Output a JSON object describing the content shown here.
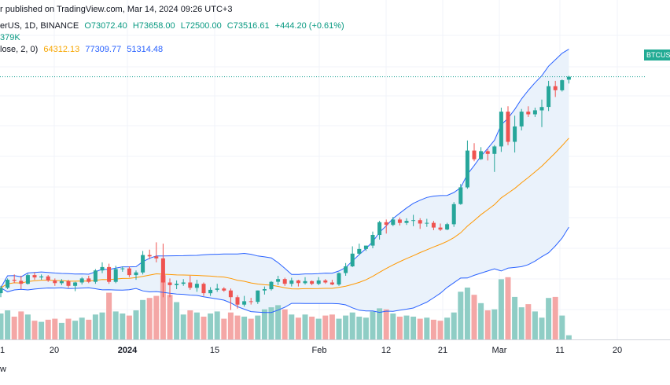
{
  "header": {
    "published": "r published on TradingView.com, Mar 14, 2024 09:26 UTC+3",
    "symbol": "erUS, 1D, BINANCE",
    "ohlc": {
      "open": "O73072.40",
      "high": "H73658.00",
      "low": "L72500.00",
      "close": "C73516.61",
      "change": "+444.20 (+0.61%)"
    },
    "volume": "379K",
    "indicator": {
      "name": "lose, 2, 0)",
      "basis": "64312.13",
      "upper": "77309.77",
      "lower": "51314.48"
    }
  },
  "price_tag": "BTCUS",
  "x_axis_labels": [
    {
      "text": "1",
      "bold": false
    },
    {
      "text": "20",
      "bold": false
    },
    {
      "text": "2024",
      "bold": true
    },
    {
      "text": "15",
      "bold": false
    },
    {
      "text": "Feb",
      "bold": false
    },
    {
      "text": "12",
      "bold": false
    },
    {
      "text": "21",
      "bold": false
    },
    {
      "text": "Mar",
      "bold": false
    },
    {
      "text": "11",
      "bold": false
    },
    {
      "text": "20",
      "bold": false
    }
  ],
  "corner_text": "w",
  "colors": {
    "up": "#26a69a",
    "down": "#ef5350",
    "vol_up": "#8fcdc5",
    "vol_down": "#f4a7a6",
    "band": "#2962ff",
    "band_fill": "#eaf2fb",
    "basis": "#ff9800"
  },
  "chart_data": {
    "type": "candlestick",
    "ohlc": [
      [
        41200,
        42300,
        40600,
        42000
      ],
      [
        42000,
        43400,
        41800,
        43200
      ],
      [
        43200,
        44000,
        42700,
        43050
      ],
      [
        43050,
        43800,
        41800,
        42600
      ],
      [
        42600,
        44100,
        42500,
        43900
      ],
      [
        43900,
        44300,
        43200,
        43550
      ],
      [
        43550,
        44000,
        43200,
        43700
      ],
      [
        43700,
        43900,
        42900,
        43100
      ],
      [
        43100,
        43400,
        42300,
        42700
      ],
      [
        42700,
        43300,
        42400,
        43000
      ],
      [
        43000,
        43200,
        42000,
        42300
      ],
      [
        42300,
        42900,
        41500,
        42800
      ],
      [
        42800,
        43600,
        42500,
        43400
      ],
      [
        43400,
        43800,
        42700,
        42900
      ],
      [
        42900,
        44800,
        42600,
        44600
      ],
      [
        44600,
        45800,
        44200,
        45100
      ],
      [
        45100,
        45600,
        42600,
        42900
      ],
      [
        42900,
        45300,
        42700,
        44800
      ],
      [
        44800,
        45200,
        44400,
        44900
      ],
      [
        44900,
        45200,
        43600,
        43900
      ],
      [
        43900,
        44600,
        43200,
        44300
      ],
      [
        44300,
        47500,
        44000,
        46900
      ],
      [
        46900,
        47700,
        46300,
        46700
      ],
      [
        46700,
        48800,
        45800,
        46400
      ],
      [
        46400,
        48600,
        40600,
        42800
      ],
      [
        42800,
        43400,
        40600,
        42400
      ],
      [
        42400,
        43100,
        41800,
        42600
      ],
      [
        42600,
        43300,
        42300,
        42800
      ],
      [
        42800,
        43800,
        41700,
        42000
      ],
      [
        42000,
        43200,
        41400,
        42600
      ],
      [
        42600,
        42800,
        40800,
        41200
      ],
      [
        41200,
        42100,
        40800,
        41700
      ],
      [
        41700,
        42600,
        41400,
        41900
      ],
      [
        41900,
        42100,
        41400,
        41600
      ],
      [
        41600,
        41900,
        38700,
        40600
      ],
      [
        40600,
        40900,
        38900,
        39500
      ],
      [
        39500,
        40800,
        39200,
        40000
      ],
      [
        40000,
        40500,
        39500,
        39900
      ],
      [
        39900,
        41600,
        39600,
        41600
      ],
      [
        41600,
        42200,
        41000,
        41800
      ],
      [
        41800,
        43000,
        41600,
        42900
      ],
      [
        42900,
        43800,
        42400,
        43300
      ],
      [
        43300,
        43500,
        42300,
        42600
      ],
      [
        42600,
        43500,
        42200,
        43100
      ],
      [
        43100,
        43200,
        42200,
        42700
      ],
      [
        42700,
        43600,
        42500,
        43000
      ],
      [
        43000,
        43100,
        42400,
        42600
      ],
      [
        42600,
        43600,
        42400,
        43100
      ],
      [
        43100,
        43300,
        42600,
        42800
      ],
      [
        42800,
        43200,
        42400,
        42500
      ],
      [
        42500,
        44300,
        42300,
        44200
      ],
      [
        44200,
        45700,
        43800,
        45200
      ],
      [
        45200,
        48200,
        45100,
        47100
      ],
      [
        47100,
        48600,
        46900,
        47800
      ],
      [
        47800,
        48300,
        47500,
        48300
      ],
      [
        48300,
        50400,
        47900,
        49900
      ],
      [
        49900,
        52000,
        49200,
        51800
      ],
      [
        51800,
        52200,
        50100,
        51400
      ],
      [
        51400,
        52600,
        51200,
        52200
      ],
      [
        52200,
        52500,
        51300,
        51700
      ],
      [
        51700,
        52400,
        51400,
        52000
      ],
      [
        52000,
        52900,
        51200,
        52100
      ],
      [
        52100,
        52400,
        50800,
        51600
      ],
      [
        51600,
        52300,
        51100,
        51700
      ],
      [
        51700,
        52000,
        50600,
        51000
      ],
      [
        51000,
        51600,
        50500,
        50700
      ],
      [
        50700,
        51700,
        50600,
        51500
      ],
      [
        51500,
        54800,
        51100,
        54500
      ],
      [
        54500,
        57500,
        54400,
        57000
      ],
      [
        57000,
        64000,
        56800,
        62500
      ],
      [
        62500,
        63600,
        60900,
        61200
      ],
      [
        61200,
        63000,
        61100,
        62400
      ],
      [
        62400,
        62700,
        61000,
        62000
      ],
      [
        62000,
        63300,
        59300,
        63100
      ],
      [
        63100,
        68900,
        62300,
        68300
      ],
      [
        68300,
        69100,
        63300,
        63800
      ],
      [
        63800,
        67700,
        62200,
        66100
      ],
      [
        66100,
        68700,
        65500,
        68300
      ],
      [
        68300,
        69100,
        67500,
        67900
      ],
      [
        67900,
        68900,
        67500,
        68500
      ],
      [
        68500,
        70100,
        66000,
        69000
      ],
      [
        69000,
        72900,
        68400,
        72100
      ],
      [
        72100,
        72900,
        70500,
        71500
      ],
      [
        71500,
        73100,
        71300,
        73000
      ],
      [
        73072.4,
        73658,
        72500,
        73516.61
      ]
    ],
    "volume": [
      25,
      28,
      22,
      27,
      24,
      18,
      17,
      19,
      20,
      16,
      20,
      18,
      21,
      19,
      24,
      26,
      45,
      27,
      25,
      23,
      28,
      38,
      40,
      42,
      62,
      43,
      36,
      24,
      28,
      26,
      22,
      25,
      27,
      20,
      26,
      23,
      22,
      20,
      23,
      29,
      31,
      33,
      29,
      24,
      21,
      24,
      22,
      20,
      23,
      24,
      20,
      23,
      26,
      22,
      21,
      27,
      30,
      29,
      25,
      22,
      23,
      22,
      20,
      21,
      19,
      18,
      21,
      26,
      46,
      50,
      43,
      35,
      28,
      29,
      58,
      60,
      41,
      31,
      34,
      27,
      21,
      40,
      41,
      23,
      4
    ],
    "bollinger": {
      "length": 20,
      "stdev": 2
    }
  }
}
